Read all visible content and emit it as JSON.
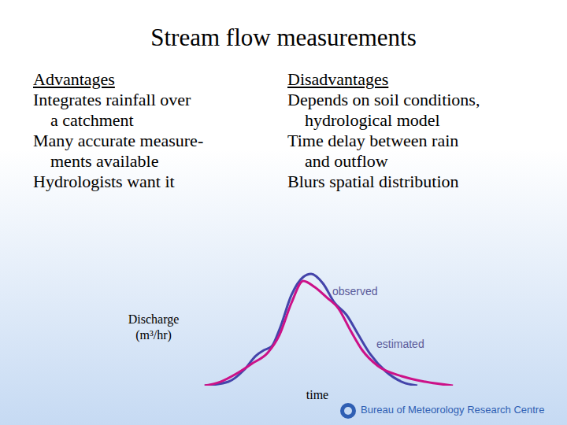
{
  "slide": {
    "title": "Stream flow measurements",
    "columns": [
      {
        "heading": "Advantages",
        "items": [
          [
            "Integrates rainfall over",
            "a catchment"
          ],
          [
            "Many accurate measure-",
            "ments available"
          ],
          [
            "Hydrologists want it"
          ]
        ]
      },
      {
        "heading": "Disadvantages",
        "items": [
          [
            "Depends on soil conditions,",
            "hydrological model"
          ],
          [
            "Time delay between rain",
            "and outflow"
          ],
          [
            "Blurs spatial distribution"
          ]
        ]
      }
    ],
    "footer": "Bureau of Meteorology Research Centre"
  },
  "chart_data": {
    "type": "line",
    "x_label": "time",
    "y_label": "Discharge (m³/hr)",
    "xlim": [
      0,
      100
    ],
    "ylim": [
      0,
      100
    ],
    "xticks": [],
    "yticks": [],
    "tick_labels": false,
    "grid": false,
    "series": [
      {
        "name": "observed",
        "color": "#4444aa",
        "x": [
          1.5,
          10.8,
          16.9,
          21.5,
          24.6,
          27.7,
          30.8,
          35.4,
          40,
          43.1,
          47.7,
          52.3,
          56.9,
          61.5,
          66.2,
          72.3,
          78.5,
          84.6
        ],
        "values": [
          0,
          3.3,
          13.3,
          25.3,
          30,
          33.3,
          48,
          76.7,
          92,
          94.7,
          86.7,
          70,
          60,
          43.3,
          26.7,
          12,
          3.3,
          0
        ]
      },
      {
        "name": "estimated",
        "color": "#cc1188",
        "x": [
          1.5,
          7.7,
          13.8,
          20,
          26.2,
          30.8,
          35.4,
          40,
          44.6,
          49.2,
          53.8,
          58.5,
          63.1,
          69.2,
          78.5,
          87.7,
          98.5
        ],
        "values": [
          0,
          3.3,
          10,
          18.7,
          28,
          43.3,
          70,
          88.7,
          83.3,
          74.7,
          65.3,
          46.7,
          30,
          16.7,
          8,
          3.3,
          0
        ]
      }
    ]
  }
}
